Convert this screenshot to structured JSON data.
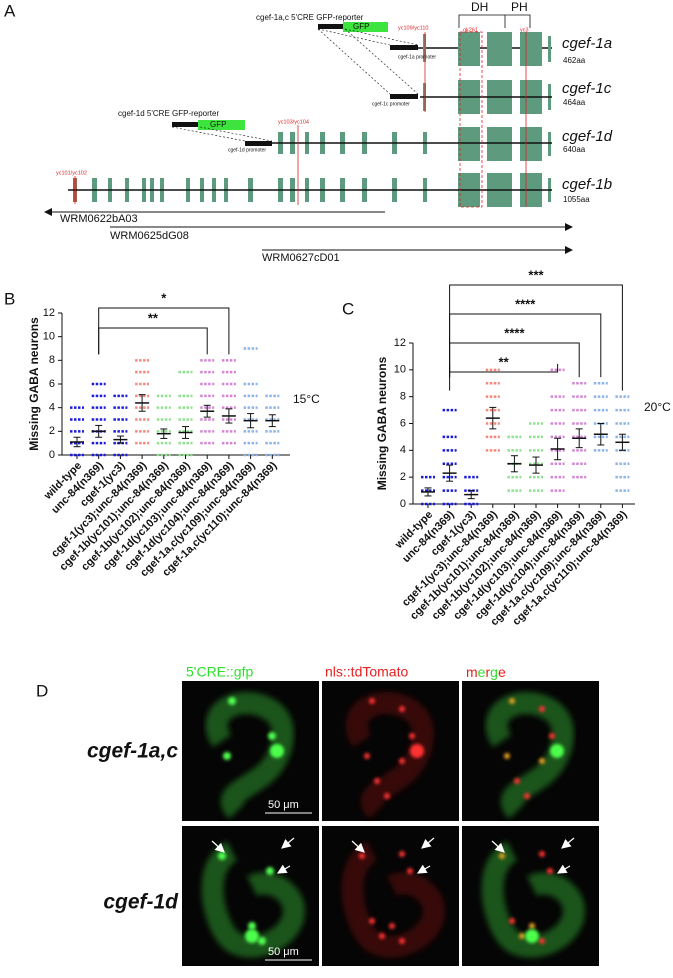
{
  "panel_a": {
    "label": "A",
    "domains": [
      "DH",
      "PH"
    ],
    "reporter_1ac": "cgef-1a,c 5'CRE GFP-reporter",
    "gfp": "GFP",
    "reporter_1d": "cgef-1d 5'CRE GFP-reporter",
    "alleles": [
      "yc109/yc110",
      "gk261",
      "yc3",
      "yc103/yc104",
      "yc101/yc102"
    ],
    "promoters": [
      "cgef-1a promoter",
      "cgef-1c promoter",
      "cgef-1d promoter"
    ],
    "isoforms": [
      {
        "name": "cgef-1a",
        "length": "462aa"
      },
      {
        "name": "cgef-1c",
        "length": "464aa"
      },
      {
        "name": "cgef-1d",
        "length": "640aa"
      },
      {
        "name": "cgef-1b",
        "length": "1055aa"
      }
    ],
    "cosmids": [
      "WRM0622bA03",
      "WRM0625dG08",
      "WRM0627cD01"
    ]
  },
  "chart_data": [
    {
      "type": "dotplot",
      "panel_label": "B",
      "y_label": "Missing GABA neurons",
      "annotation": "15°C",
      "categories": [
        "wild-type",
        "unc-84(n369)",
        "cgef-1(yc3)",
        "cgef-1(yc3);unc-84(n369)",
        "cgef-1b(yc101);unc-84(n369)",
        "cgef-1b(yc102);unc-84(n369)",
        "cgef-1d(yc103);unc-84(n369)",
        "cgef-1d(yc104);unc-84(n369)",
        "cgef-1a,c(yc109);unc-84(n369)",
        "cgef-1a,c(yc110);unc-84(n369)"
      ],
      "values": [
        1.1,
        2.0,
        1.3,
        4.4,
        1.8,
        1.9,
        3.7,
        3.3,
        2.9,
        2.9
      ],
      "errors": [
        0.4,
        0.5,
        0.3,
        0.7,
        0.4,
        0.5,
        0.5,
        0.6,
        0.6,
        0.5
      ],
      "points": [
        [
          0,
          1,
          2,
          3,
          4
        ],
        [
          0,
          1,
          2,
          3,
          4,
          5,
          6
        ],
        [
          0,
          1,
          2,
          3,
          4,
          5
        ],
        [
          1,
          2,
          3,
          4,
          5,
          6,
          7,
          8
        ],
        [
          0,
          1,
          2,
          3,
          4,
          5
        ],
        [
          0,
          1,
          2,
          3,
          4,
          5,
          7
        ],
        [
          1,
          2,
          3,
          4,
          5,
          6,
          7,
          8
        ],
        [
          1,
          2,
          3,
          4,
          5,
          6,
          7,
          8
        ],
        [
          0,
          1,
          2,
          3,
          4,
          5,
          6,
          9
        ],
        [
          0,
          1,
          2,
          3,
          4,
          5
        ]
      ],
      "colors": [
        "#1c1cd8",
        "#1c1cd8",
        "#1c1cd8",
        "#f4887c",
        "#8fe08f",
        "#8fe08f",
        "#d484d4",
        "#d484d4",
        "#8cb4e4",
        "#8cb4e4"
      ],
      "ylim": [
        0,
        12
      ],
      "yticks": [
        0,
        2,
        4,
        6,
        8,
        10,
        12
      ],
      "significance": [
        {
          "from": 1,
          "to": 7,
          "label": "*"
        },
        {
          "from": 1,
          "to": 6,
          "label": "**"
        }
      ]
    },
    {
      "type": "dotplot",
      "panel_label": "C",
      "y_label": "Missing GABA neurons",
      "annotation": "20°C",
      "categories": [
        "wild-type",
        "unc-84(n369)",
        "cgef-1(yc3)",
        "cgef-1(yc3);unc-84(n369)",
        "cgef-1b(yc101);unc-84(n369)",
        "cgef-1b(yc102);unc-84(n369)",
        "cgef-1d(yc103);unc-84(n369)",
        "cgef-1d(yc104);unc-84(n369)",
        "cgef-1a,c(yc109);unc-84(n369)",
        "cgef-1a,c(yc110);unc-84(n369)"
      ],
      "values": [
        0.9,
        2.3,
        0.7,
        6.4,
        3.0,
        2.9,
        4.1,
        4.9,
        5.2,
        4.6
      ],
      "errors": [
        0.3,
        0.6,
        0.3,
        0.8,
        0.6,
        0.6,
        0.8,
        0.7,
        0.8,
        0.6
      ],
      "points": [
        [
          0,
          1,
          2
        ],
        [
          0,
          1,
          2,
          3,
          4,
          5,
          7
        ],
        [
          0,
          1,
          2
        ],
        [
          4,
          5,
          6,
          7,
          8,
          9,
          10
        ],
        [
          1,
          2,
          3,
          4,
          5
        ],
        [
          1,
          2,
          3,
          4,
          5,
          6
        ],
        [
          1,
          2,
          3,
          4,
          5,
          6,
          7,
          8,
          10
        ],
        [
          2,
          3,
          4,
          5,
          6,
          7,
          8,
          9
        ],
        [
          4,
          5,
          6,
          7,
          8,
          9
        ],
        [
          1,
          2,
          3,
          4,
          5,
          6,
          7,
          8
        ]
      ],
      "colors": [
        "#1c1cd8",
        "#1c1cd8",
        "#1c1cd8",
        "#f4887c",
        "#8fe08f",
        "#8fe08f",
        "#d484d4",
        "#d484d4",
        "#8cb4e4",
        "#8cb4e4"
      ],
      "ylim": [
        0,
        12
      ],
      "yticks": [
        0,
        2,
        4,
        6,
        8,
        10,
        12
      ],
      "significance": [
        {
          "from": 1,
          "to": 9,
          "label": "***"
        },
        {
          "from": 1,
          "to": 8,
          "label": "****"
        },
        {
          "from": 1,
          "to": 7,
          "label": "****"
        },
        {
          "from": 1,
          "to": 6,
          "label": "**"
        }
      ]
    }
  ],
  "panel_d": {
    "label": "D",
    "channels": [
      "5'CRE::gfp",
      "nls::tdTomato",
      "merge"
    ],
    "rows": [
      "cgef-1a,c",
      "cgef-1d"
    ],
    "scale_bars": [
      "50 μm",
      "50 μm"
    ]
  }
}
